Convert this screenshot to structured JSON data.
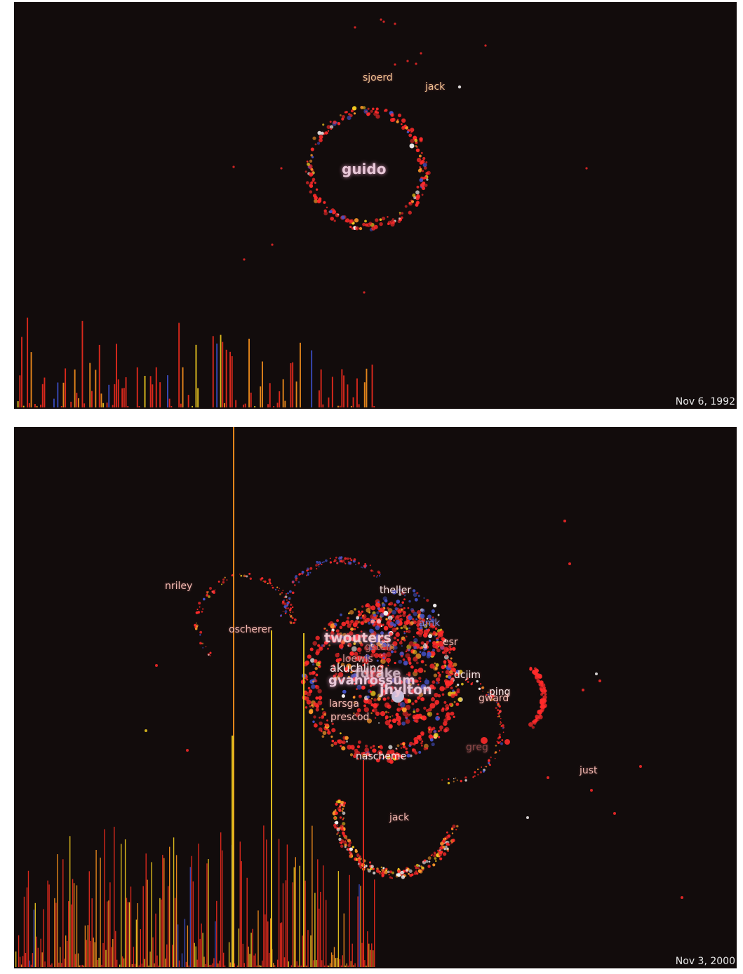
{
  "colors": {
    "background": "#120c0c",
    "node_red": "#ff2a2a",
    "node_orange": "#ff9a2a",
    "node_yellow": "#f2cc20",
    "node_blue": "#4452c8",
    "node_white": "#f4f0f0",
    "hist_red": "#e62a1e",
    "hist_orange": "#f08c1c",
    "hist_yellow": "#e8c420",
    "hist_blue": "#3a4cc0"
  },
  "panels": [
    {
      "date": "Nov 6, 1992",
      "labels": {
        "sjoerd": "sjoerd",
        "jack": "jack",
        "guido": "guido"
      }
    },
    {
      "date": "Nov 3, 2000",
      "labels": {
        "nriley": "nriley",
        "theller": "theller",
        "amk": "amk",
        "oscherer": "oscherer",
        "twouters": "twouters",
        "gstein": "gstein",
        "esr": "esr",
        "nascheme_lower": "nascheme",
        "akuchling": "akuchling",
        "loewis": "loewis",
        "fdrake": "fdrake",
        "gvanrossum": "gvanrossum",
        "jhylton": "jhylton",
        "dcjim": "dcjim",
        "ping": "ping",
        "gward": "gward",
        "larsga": "larsga",
        "prescod": "prescod",
        "greg": "greg",
        "just": "just",
        "jack": "jack"
      }
    }
  ]
}
